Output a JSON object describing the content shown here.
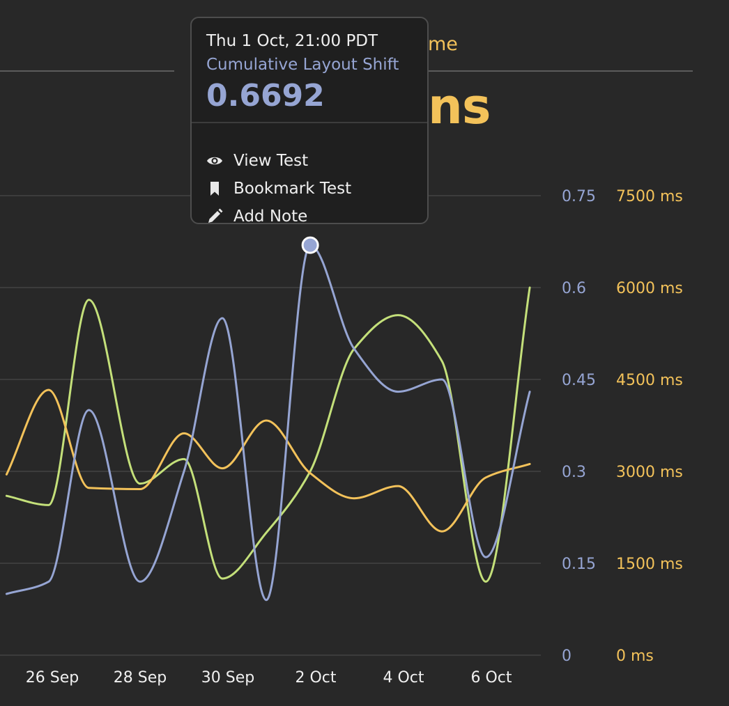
{
  "header": {
    "label_fragment": "me",
    "value_fragment": "ns"
  },
  "tooltip": {
    "date": "Thu 1 Oct, 21:00 PDT",
    "metric": "Cumulative Layout Shift",
    "value": "0.6692",
    "actions": [
      {
        "label": "View Test",
        "icon": "eye-icon"
      },
      {
        "label": "Bookmark Test",
        "icon": "bookmark-icon"
      },
      {
        "label": "Add Note",
        "icon": "pencil-icon"
      }
    ]
  },
  "colors": {
    "cls": "#96a5d3",
    "ms_series": "#f3c25a",
    "green_series": "#c4e07a",
    "grid": "#3c3c3c",
    "background": "#282828"
  },
  "chart_data": {
    "type": "line",
    "x_tick_labels": [
      "26 Sep",
      "28 Sep",
      "30 Sep",
      "2 Oct",
      "4 Oct",
      "6 Oct"
    ],
    "x_tick_dates": [
      "2020-09-26",
      "2020-09-28",
      "2020-09-30",
      "2020-10-02",
      "2020-10-04",
      "2020-10-06"
    ],
    "y_left": {
      "ticks": [
        0,
        0.15,
        0.3,
        0.45,
        0.6,
        0.75
      ],
      "labels": [
        "0",
        "0.15",
        "0.3",
        "0.45",
        "0.6",
        "0.75"
      ],
      "range": [
        0,
        0.75
      ]
    },
    "y_right": {
      "ticks": [
        0,
        1500,
        3000,
        4500,
        6000,
        7500
      ],
      "labels": [
        "0 ms",
        "1500 ms",
        "3000 ms",
        "4500 ms",
        "6000 ms",
        "7500 ms"
      ],
      "range": [
        0,
        7500
      ]
    },
    "grid": true,
    "series": [
      {
        "name": "Cumulative Layout Shift",
        "axis": "left",
        "color": "#96a5d3",
        "points": [
          [
            "2020-09-24 23:00",
            0.1
          ],
          [
            "2020-09-25 22:00",
            0.12
          ],
          [
            "2020-09-26 20:00",
            0.4
          ],
          [
            "2020-09-28 00:00",
            0.12
          ],
          [
            "2020-09-29 00:00",
            0.3
          ],
          [
            "2020-09-29 21:00",
            0.55
          ],
          [
            "2020-09-30 21:00",
            0.09
          ],
          [
            "2020-10-01 21:00",
            0.6692
          ],
          [
            "2020-10-02 21:00",
            0.5
          ],
          [
            "2020-10-03 21:00",
            0.43
          ],
          [
            "2020-10-04 21:00",
            0.45
          ],
          [
            "2020-10-05 21:00",
            0.16
          ],
          [
            "2020-10-06 21:00",
            0.43
          ]
        ]
      },
      {
        "axis": "right",
        "color": "#f3c25a",
        "points": [
          [
            "2020-09-24 23:00",
            2950
          ],
          [
            "2020-09-25 22:00",
            4330
          ],
          [
            "2020-09-26 20:00",
            2730
          ],
          [
            "2020-09-28 00:00",
            2710
          ],
          [
            "2020-09-29 00:00",
            3620
          ],
          [
            "2020-09-29 21:00",
            3050
          ],
          [
            "2020-09-30 21:00",
            3830
          ],
          [
            "2020-10-01 21:00",
            2970
          ],
          [
            "2020-10-02 21:00",
            2560
          ],
          [
            "2020-10-03 21:00",
            2760
          ],
          [
            "2020-10-04 21:00",
            2020
          ],
          [
            "2020-10-05 21:00",
            2900
          ],
          [
            "2020-10-06 21:00",
            3120
          ]
        ]
      },
      {
        "axis": "left",
        "color": "#c4e07a",
        "points": [
          [
            "2020-09-24 23:00",
            0.26
          ],
          [
            "2020-09-25 22:00",
            0.245
          ],
          [
            "2020-09-26 20:00",
            0.58
          ],
          [
            "2020-09-28 00:00",
            0.28
          ],
          [
            "2020-09-29 00:00",
            0.32
          ],
          [
            "2020-09-29 21:00",
            0.125
          ],
          [
            "2020-09-30 21:00",
            0.2
          ],
          [
            "2020-10-01 21:00",
            0.3
          ],
          [
            "2020-10-02 21:00",
            0.5
          ],
          [
            "2020-10-03 21:00",
            0.555
          ],
          [
            "2020-10-04 21:00",
            0.48
          ],
          [
            "2020-10-05 21:00",
            0.12
          ],
          [
            "2020-10-06 21:00",
            0.6
          ]
        ]
      }
    ],
    "highlight": {
      "series": "Cumulative Layout Shift",
      "x": "2020-10-01 21:00",
      "y": 0.6692
    }
  }
}
